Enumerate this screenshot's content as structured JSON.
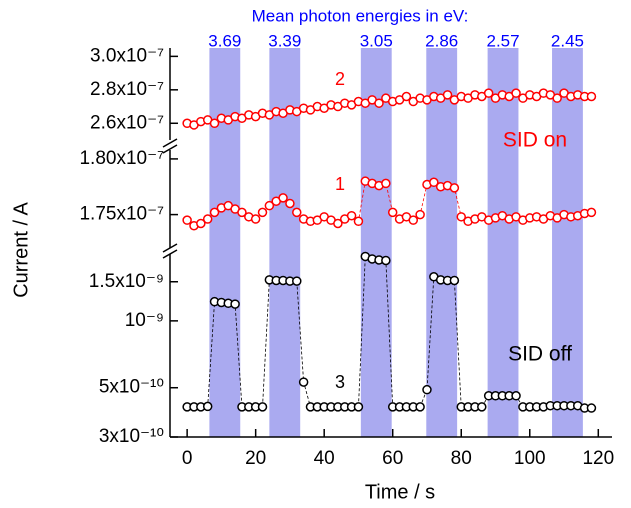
{
  "chart_data": {
    "type": "scatter",
    "title": "Mean photon energies in eV:",
    "xlabel": "Time / s",
    "ylabel": "Current / A",
    "xlim": [
      -5,
      124
    ],
    "xticks": [
      0,
      20,
      40,
      60,
      80,
      100,
      120
    ],
    "x": [
      0,
      2,
      4,
      6,
      8,
      10,
      12,
      14,
      16,
      18,
      20,
      22,
      24,
      26,
      28,
      30,
      32,
      34,
      36,
      38,
      40,
      42,
      44,
      46,
      48,
      50,
      52,
      54,
      56,
      58,
      60,
      62,
      64,
      66,
      68,
      70,
      72,
      74,
      76,
      78,
      80,
      82,
      84,
      86,
      88,
      90,
      92,
      94,
      96,
      98,
      100,
      102,
      104,
      106,
      108,
      110,
      112,
      114,
      116,
      118
    ],
    "band_color": "#aaaaf0",
    "band_label_color": "#0000ff",
    "bands": [
      {
        "x0": 6.5,
        "x1": 15.5,
        "label": "3.69"
      },
      {
        "x0": 24,
        "x1": 33,
        "label": "3.39"
      },
      {
        "x0": 50.7,
        "x1": 59.7,
        "label": "3.05"
      },
      {
        "x0": 69.8,
        "x1": 78.8,
        "label": "2.86"
      },
      {
        "x0": 87.7,
        "x1": 96.7,
        "label": "2.57"
      },
      {
        "x0": 106.5,
        "x1": 115.5,
        "label": "2.45"
      }
    ],
    "panels": [
      {
        "log": false,
        "ylim": [
          2.5e-07,
          3.05e-07
        ],
        "yticks": [
          {
            "value": 3e-07,
            "label": "3.0x10⁻⁷"
          },
          {
            "value": 2.8e-07,
            "label": "2.8x10⁻⁷"
          },
          {
            "value": 2.6e-07,
            "label": "2.6x10⁻⁷"
          }
        ],
        "series": [
          {
            "name": "2",
            "color": "#ff0000",
            "values": [
              2.6e-07,
              2.59e-07,
              2.61e-07,
              2.62e-07,
              2.6e-07,
              2.63e-07,
              2.62e-07,
              2.64e-07,
              2.63e-07,
              2.65e-07,
              2.64e-07,
              2.66e-07,
              2.65e-07,
              2.67e-07,
              2.66e-07,
              2.68e-07,
              2.67e-07,
              2.69e-07,
              2.68e-07,
              2.7e-07,
              2.69e-07,
              2.71e-07,
              2.7e-07,
              2.72e-07,
              2.71e-07,
              2.73e-07,
              2.72e-07,
              2.74e-07,
              2.72e-07,
              2.75e-07,
              2.73e-07,
              2.74e-07,
              2.76e-07,
              2.73e-07,
              2.75e-07,
              2.74e-07,
              2.76e-07,
              2.75e-07,
              2.77e-07,
              2.74e-07,
              2.76e-07,
              2.75e-07,
              2.77e-07,
              2.76e-07,
              2.78e-07,
              2.75e-07,
              2.77e-07,
              2.76e-07,
              2.78e-07,
              2.75e-07,
              2.77e-07,
              2.76e-07,
              2.78e-07,
              2.77e-07,
              2.75e-07,
              2.78e-07,
              2.76e-07,
              2.77e-07,
              2.76e-07,
              2.76e-07
            ]
          }
        ]
      },
      {
        "log": false,
        "ylim": [
          1.72e-07,
          1.808e-07
        ],
        "yticks": [
          {
            "value": 1.8e-07,
            "label": "1.80x10⁻⁷"
          },
          {
            "value": 1.75e-07,
            "label": "1.75x10⁻⁷"
          }
        ],
        "series": [
          {
            "name": "1",
            "color": "#ff0000",
            "values": [
              1.745e-07,
              1.74e-07,
              1.742e-07,
              1.746e-07,
              1.752e-07,
              1.756e-07,
              1.758e-07,
              1.755e-07,
              1.752e-07,
              1.748e-07,
              1.746e-07,
              1.752e-07,
              1.758e-07,
              1.762e-07,
              1.765e-07,
              1.76e-07,
              1.752e-07,
              1.746e-07,
              1.744e-07,
              1.745e-07,
              1.748e-07,
              1.745e-07,
              1.742e-07,
              1.746e-07,
              1.749e-07,
              1.744e-07,
              1.78e-07,
              1.778e-07,
              1.776e-07,
              1.778e-07,
              1.752e-07,
              1.746e-07,
              1.748e-07,
              1.745e-07,
              1.75e-07,
              1.777e-07,
              1.779e-07,
              1.775e-07,
              1.776e-07,
              1.774e-07,
              1.748e-07,
              1.744e-07,
              1.746e-07,
              1.748e-07,
              1.745e-07,
              1.747e-07,
              1.749e-07,
              1.746e-07,
              1.748e-07,
              1.745e-07,
              1.747e-07,
              1.748e-07,
              1.746e-07,
              1.749e-07,
              1.747e-07,
              1.75e-07,
              1.748e-07,
              1.749e-07,
              1.751e-07,
              1.752e-07
            ]
          }
        ]
      },
      {
        "log": true,
        "ylim": [
          3e-10,
          2e-09
        ],
        "yticks": [
          {
            "value": 1.5e-09,
            "label": "1.5x10⁻⁹"
          },
          {
            "value": 1e-09,
            "label": "10⁻⁹"
          },
          {
            "value": 5e-10,
            "label": "5x10⁻¹⁰"
          },
          {
            "value": 3e-10,
            "label": "3x10⁻¹⁰"
          }
        ],
        "series": [
          {
            "name": "3",
            "color": "#000000",
            "values": [
              4.1e-10,
              4.1e-10,
              4.1e-10,
              4.12e-10,
              1.22e-09,
              1.21e-09,
              1.2e-09,
              1.19e-09,
              4.1e-10,
              4.1e-10,
              4.1e-10,
              4.1e-10,
              1.53e-09,
              1.52e-09,
              1.52e-09,
              1.51e-09,
              1.51e-09,
              5.3e-10,
              4.1e-10,
              4.1e-10,
              4.1e-10,
              4.1e-10,
              4.1e-10,
              4.1e-10,
              4.1e-10,
              4.1e-10,
              1.95e-09,
              1.9e-09,
              1.88e-09,
              1.87e-09,
              4.1e-10,
              4.1e-10,
              4.1e-10,
              4.1e-10,
              4.1e-10,
              4.9e-10,
              1.58e-09,
              1.53e-09,
              1.52e-09,
              1.52e-09,
              4.1e-10,
              4.1e-10,
              4.1e-10,
              4.1e-10,
              4.6e-10,
              4.6e-10,
              4.6e-10,
              4.6e-10,
              4.6e-10,
              4.1e-10,
              4.1e-10,
              4.1e-10,
              4.1e-10,
              4.15e-10,
              4.15e-10,
              4.15e-10,
              4.15e-10,
              4.15e-10,
              4.05e-10,
              4.05e-10
            ]
          }
        ]
      }
    ],
    "annotations": [
      {
        "text": "SID on",
        "color": "#ff0000"
      },
      {
        "text": "SID off",
        "color": "#000000"
      }
    ]
  }
}
